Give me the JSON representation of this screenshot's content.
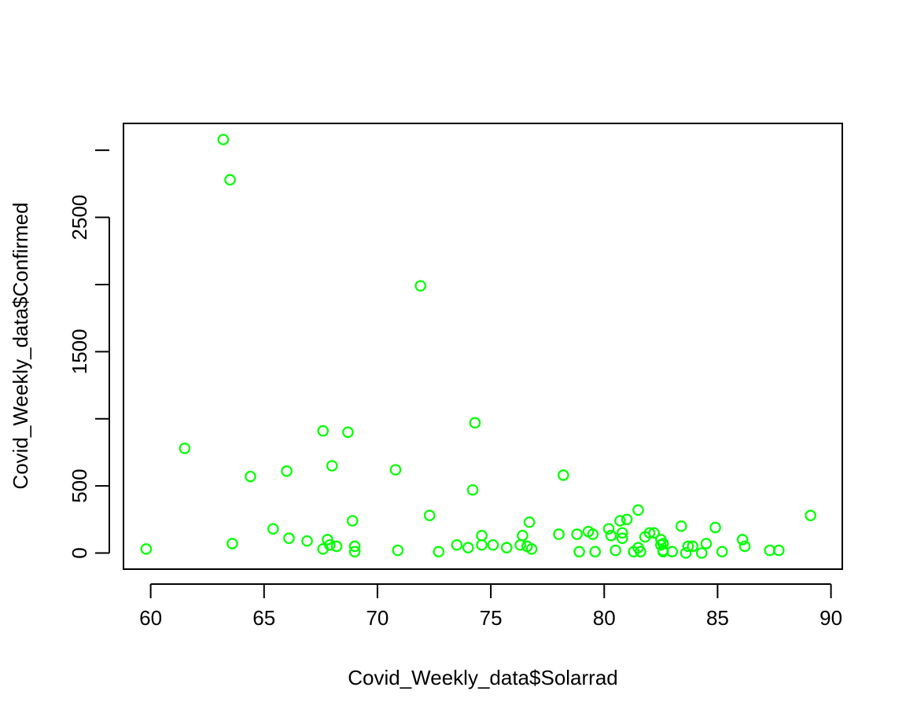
{
  "chart_data": {
    "type": "scatter",
    "title": "",
    "xlabel": "Covid_Weekly_data$Solarrad",
    "ylabel": "Covid_Weekly_data$Confirmed",
    "xlim": [
      58.8,
      90.5
    ],
    "ylim": [
      -120,
      3200
    ],
    "xticks": [
      60,
      65,
      70,
      75,
      80,
      85,
      90
    ],
    "yticks": [
      0,
      500,
      1500,
      2500
    ],
    "grid": false,
    "marker": "open-circle",
    "point_color": "#00ff00",
    "points": [
      [
        59.8,
        30
      ],
      [
        61.5,
        780
      ],
      [
        63.2,
        3080
      ],
      [
        63.5,
        2780
      ],
      [
        63.6,
        70
      ],
      [
        64.4,
        570
      ],
      [
        65.4,
        180
      ],
      [
        66.0,
        610
      ],
      [
        66.1,
        110
      ],
      [
        66.9,
        90
      ],
      [
        67.6,
        30
      ],
      [
        67.6,
        910
      ],
      [
        67.8,
        100
      ],
      [
        67.9,
        60
      ],
      [
        68.0,
        650
      ],
      [
        68.2,
        50
      ],
      [
        68.7,
        900
      ],
      [
        68.9,
        240
      ],
      [
        69.0,
        50
      ],
      [
        69.0,
        10
      ],
      [
        70.8,
        620
      ],
      [
        70.9,
        20
      ],
      [
        71.9,
        1990
      ],
      [
        72.3,
        280
      ],
      [
        72.7,
        10
      ],
      [
        73.5,
        60
      ],
      [
        74.0,
        40
      ],
      [
        74.2,
        470
      ],
      [
        74.3,
        970
      ],
      [
        74.6,
        130
      ],
      [
        74.6,
        60
      ],
      [
        75.1,
        60
      ],
      [
        75.7,
        40
      ],
      [
        76.3,
        60
      ],
      [
        76.4,
        130
      ],
      [
        76.6,
        50
      ],
      [
        76.7,
        230
      ],
      [
        76.8,
        30
      ],
      [
        78.0,
        140
      ],
      [
        78.2,
        580
      ],
      [
        78.8,
        140
      ],
      [
        78.9,
        10
      ],
      [
        79.3,
        160
      ],
      [
        79.5,
        140
      ],
      [
        79.6,
        10
      ],
      [
        80.2,
        180
      ],
      [
        80.3,
        130
      ],
      [
        80.5,
        20
      ],
      [
        80.7,
        240
      ],
      [
        80.8,
        150
      ],
      [
        80.8,
        110
      ],
      [
        81.0,
        250
      ],
      [
        81.3,
        10
      ],
      [
        81.5,
        40
      ],
      [
        81.5,
        320
      ],
      [
        81.6,
        10
      ],
      [
        81.8,
        120
      ],
      [
        82.0,
        150
      ],
      [
        82.2,
        150
      ],
      [
        82.5,
        100
      ],
      [
        82.5,
        60
      ],
      [
        82.6,
        20
      ],
      [
        82.6,
        70
      ],
      [
        82.6,
        10
      ],
      [
        83.0,
        10
      ],
      [
        83.4,
        200
      ],
      [
        83.6,
        0
      ],
      [
        83.7,
        50
      ],
      [
        83.9,
        50
      ],
      [
        84.3,
        0
      ],
      [
        84.5,
        70
      ],
      [
        84.9,
        190
      ],
      [
        85.2,
        10
      ],
      [
        86.1,
        100
      ],
      [
        86.2,
        50
      ],
      [
        87.3,
        20
      ],
      [
        87.7,
        20
      ],
      [
        89.1,
        280
      ]
    ]
  }
}
